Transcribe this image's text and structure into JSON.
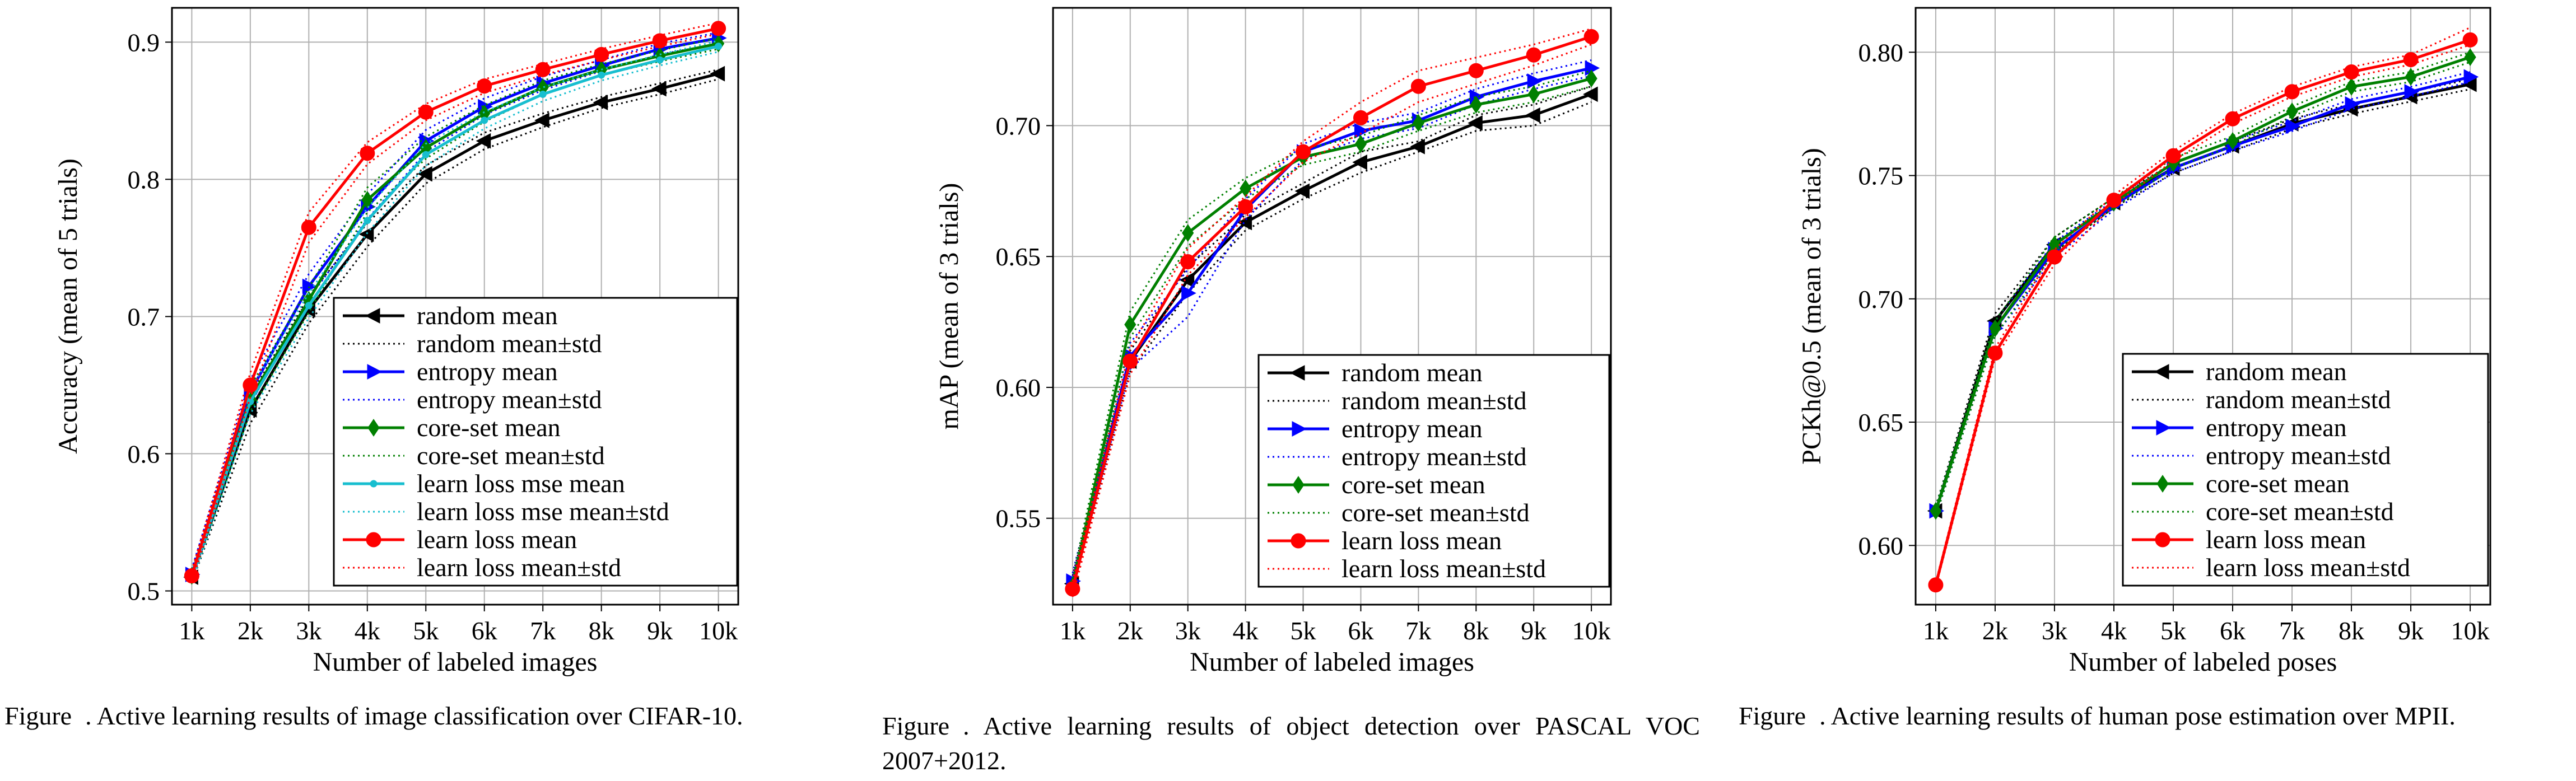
{
  "captions": [
    {
      "label": "Figure",
      "text": ". Active learning results of image classification over CIFAR-10."
    },
    {
      "label": "Figure",
      "text": ". Active learning results of object detection over PASCAL VOC 2007+2012."
    },
    {
      "label": "Figure",
      "text": ". Active learning results of human pose estimation over MPII."
    }
  ],
  "chart_data": [
    {
      "type": "line",
      "xlabel": "Number of labeled images",
      "ylabel": "Accuracy (mean of 5 trials)",
      "categories": [
        "1k",
        "2k",
        "3k",
        "4k",
        "5k",
        "6k",
        "7k",
        "8k",
        "9k",
        "10k"
      ],
      "ylim": [
        0.49,
        0.925
      ],
      "yticks": [
        0.5,
        0.6,
        0.7,
        0.8,
        0.9
      ],
      "ytick_labels": [
        "0.5",
        "0.6",
        "0.7",
        "0.8",
        "0.9"
      ],
      "grid": true,
      "legend_position": "lower-right",
      "series": [
        {
          "name": "random mean",
          "std_name": "random mean±std",
          "color": "#000000",
          "marker": "tri-left",
          "values": [
            0.51,
            0.632,
            0.705,
            0.76,
            0.804,
            0.828,
            0.843,
            0.856,
            0.866,
            0.877
          ],
          "lower": [
            0.506,
            0.622,
            0.695,
            0.751,
            0.797,
            0.822,
            0.838,
            0.852,
            0.862,
            0.873
          ],
          "upper": [
            0.514,
            0.642,
            0.715,
            0.768,
            0.81,
            0.834,
            0.848,
            0.86,
            0.87,
            0.88
          ]
        },
        {
          "name": "entropy mean",
          "std_name": "entropy mean±std",
          "color": "#0000ff",
          "marker": "tri-right",
          "values": [
            0.512,
            0.645,
            0.722,
            0.78,
            0.828,
            0.853,
            0.87,
            0.883,
            0.895,
            0.903
          ],
          "lower": [
            0.508,
            0.636,
            0.713,
            0.771,
            0.82,
            0.847,
            0.865,
            0.879,
            0.891,
            0.899
          ],
          "upper": [
            0.516,
            0.654,
            0.731,
            0.789,
            0.836,
            0.859,
            0.875,
            0.887,
            0.899,
            0.907
          ]
        },
        {
          "name": "core-set mean",
          "std_name": "core-set mean±std",
          "color": "#008000",
          "marker": "diamond",
          "values": [
            0.511,
            0.64,
            0.712,
            0.785,
            0.823,
            0.848,
            0.867,
            0.88,
            0.89,
            0.899
          ],
          "lower": [
            0.507,
            0.631,
            0.703,
            0.776,
            0.815,
            0.842,
            0.862,
            0.876,
            0.886,
            0.895
          ],
          "upper": [
            0.515,
            0.649,
            0.721,
            0.794,
            0.831,
            0.854,
            0.872,
            0.884,
            0.894,
            0.903
          ]
        },
        {
          "name": "learn loss mse mean",
          "std_name": "learn loss mse mean±std",
          "color": "#17becf",
          "marker": "dot",
          "values": [
            0.51,
            0.638,
            0.708,
            0.77,
            0.818,
            0.843,
            0.862,
            0.876,
            0.887,
            0.897
          ],
          "lower": [
            0.506,
            0.629,
            0.699,
            0.761,
            0.81,
            0.837,
            0.857,
            0.872,
            0.883,
            0.893
          ],
          "upper": [
            0.514,
            0.647,
            0.717,
            0.779,
            0.826,
            0.849,
            0.867,
            0.88,
            0.891,
            0.901
          ]
        },
        {
          "name": "learn loss mean",
          "std_name": "learn loss mean±std",
          "color": "#ff0000",
          "marker": "circle",
          "values": [
            0.511,
            0.65,
            0.765,
            0.819,
            0.849,
            0.868,
            0.88,
            0.891,
            0.901,
            0.91
          ],
          "lower": [
            0.507,
            0.641,
            0.754,
            0.811,
            0.843,
            0.863,
            0.876,
            0.887,
            0.897,
            0.906
          ],
          "upper": [
            0.515,
            0.659,
            0.776,
            0.827,
            0.855,
            0.873,
            0.884,
            0.895,
            0.905,
            0.914
          ]
        }
      ]
    },
    {
      "type": "line",
      "xlabel": "Number of labeled images",
      "ylabel": "mAP (mean of 3 trials)",
      "categories": [
        "1k",
        "2k",
        "3k",
        "4k",
        "5k",
        "6k",
        "7k",
        "8k",
        "9k",
        "10k"
      ],
      "ylim": [
        0.517,
        0.745
      ],
      "yticks": [
        0.55,
        0.6,
        0.65,
        0.7
      ],
      "ytick_labels": [
        "0.55",
        "0.60",
        "0.65",
        "0.70"
      ],
      "grid": true,
      "legend_position": "lower-right",
      "series": [
        {
          "name": "random mean",
          "std_name": "random mean±std",
          "color": "#000000",
          "marker": "tri-left",
          "values": [
            0.525,
            0.61,
            0.641,
            0.663,
            0.675,
            0.686,
            0.692,
            0.701,
            0.704,
            0.712
          ],
          "lower": [
            0.522,
            0.606,
            0.636,
            0.66,
            0.672,
            0.682,
            0.69,
            0.698,
            0.7,
            0.709
          ],
          "upper": [
            0.528,
            0.614,
            0.646,
            0.666,
            0.678,
            0.69,
            0.694,
            0.704,
            0.708,
            0.715
          ]
        },
        {
          "name": "entropy mean",
          "std_name": "entropy mean±std",
          "color": "#0000ff",
          "marker": "tri-right",
          "values": [
            0.526,
            0.612,
            0.636,
            0.668,
            0.69,
            0.698,
            0.702,
            0.711,
            0.717,
            0.722
          ],
          "lower": [
            0.523,
            0.607,
            0.627,
            0.664,
            0.687,
            0.695,
            0.699,
            0.708,
            0.714,
            0.719
          ],
          "upper": [
            0.529,
            0.617,
            0.645,
            0.672,
            0.693,
            0.701,
            0.705,
            0.714,
            0.72,
            0.725
          ]
        },
        {
          "name": "core-set mean",
          "std_name": "core-set mean±std",
          "color": "#008000",
          "marker": "diamond",
          "values": [
            0.524,
            0.624,
            0.659,
            0.676,
            0.688,
            0.693,
            0.701,
            0.708,
            0.712,
            0.718
          ],
          "lower": [
            0.521,
            0.619,
            0.654,
            0.672,
            0.685,
            0.69,
            0.698,
            0.705,
            0.709,
            0.715
          ],
          "upper": [
            0.527,
            0.629,
            0.664,
            0.68,
            0.691,
            0.696,
            0.704,
            0.711,
            0.715,
            0.721
          ]
        },
        {
          "name": "learn loss mean",
          "std_name": "learn loss mean±std",
          "color": "#ff0000",
          "marker": "circle",
          "values": [
            0.523,
            0.61,
            0.648,
            0.669,
            0.69,
            0.703,
            0.715,
            0.721,
            0.727,
            0.734
          ],
          "lower": [
            0.52,
            0.605,
            0.643,
            0.665,
            0.686,
            0.697,
            0.709,
            0.716,
            0.723,
            0.731
          ],
          "upper": [
            0.526,
            0.615,
            0.653,
            0.673,
            0.694,
            0.709,
            0.721,
            0.726,
            0.731,
            0.737
          ]
        }
      ]
    },
    {
      "type": "line",
      "xlabel": "Number of labeled poses",
      "ylabel": "PCKh@0.5 (mean of 3 trials)",
      "categories": [
        "1k",
        "2k",
        "3k",
        "4k",
        "5k",
        "6k",
        "7k",
        "8k",
        "9k",
        "10k"
      ],
      "ylim": [
        0.576,
        0.818
      ],
      "yticks": [
        0.6,
        0.65,
        0.7,
        0.75,
        0.8
      ],
      "ytick_labels": [
        "0.60",
        "0.65",
        "0.70",
        "0.75",
        "0.80"
      ],
      "grid": true,
      "legend_position": "lower-right",
      "series": [
        {
          "name": "random mean",
          "std_name": "random mean±std",
          "color": "#000000",
          "marker": "tri-left",
          "values": [
            0.614,
            0.691,
            0.722,
            0.739,
            0.753,
            0.762,
            0.771,
            0.777,
            0.782,
            0.787
          ],
          "lower": [
            0.612,
            0.688,
            0.719,
            0.737,
            0.751,
            0.76,
            0.769,
            0.775,
            0.78,
            0.785
          ],
          "upper": [
            0.616,
            0.694,
            0.725,
            0.741,
            0.755,
            0.764,
            0.773,
            0.779,
            0.784,
            0.789
          ]
        },
        {
          "name": "entropy mean",
          "std_name": "entropy mean±std",
          "color": "#0000ff",
          "marker": "tri-right",
          "values": [
            0.614,
            0.688,
            0.72,
            0.738,
            0.753,
            0.762,
            0.77,
            0.779,
            0.784,
            0.79
          ],
          "lower": [
            0.612,
            0.685,
            0.717,
            0.736,
            0.751,
            0.76,
            0.768,
            0.777,
            0.782,
            0.788
          ],
          "upper": [
            0.616,
            0.691,
            0.723,
            0.74,
            0.755,
            0.764,
            0.772,
            0.781,
            0.786,
            0.792
          ]
        },
        {
          "name": "core-set mean",
          "std_name": "core-set mean±std",
          "color": "#008000",
          "marker": "diamond",
          "values": [
            0.614,
            0.688,
            0.722,
            0.739,
            0.755,
            0.764,
            0.776,
            0.786,
            0.79,
            0.798
          ],
          "lower": [
            0.612,
            0.685,
            0.719,
            0.737,
            0.753,
            0.762,
            0.774,
            0.784,
            0.788,
            0.796
          ],
          "upper": [
            0.616,
            0.691,
            0.725,
            0.741,
            0.757,
            0.766,
            0.778,
            0.788,
            0.792,
            0.8
          ]
        },
        {
          "name": "learn loss mean",
          "std_name": "learn loss mean±std",
          "color": "#ff0000",
          "marker": "circle",
          "values": [
            0.584,
            0.678,
            0.717,
            0.74,
            0.758,
            0.773,
            0.784,
            0.792,
            0.797,
            0.805
          ],
          "lower": [
            0.583,
            0.676,
            0.714,
            0.738,
            0.756,
            0.771,
            0.782,
            0.79,
            0.795,
            0.803
          ],
          "upper": [
            0.585,
            0.68,
            0.72,
            0.742,
            0.76,
            0.775,
            0.786,
            0.794,
            0.799,
            0.81
          ]
        }
      ]
    }
  ]
}
